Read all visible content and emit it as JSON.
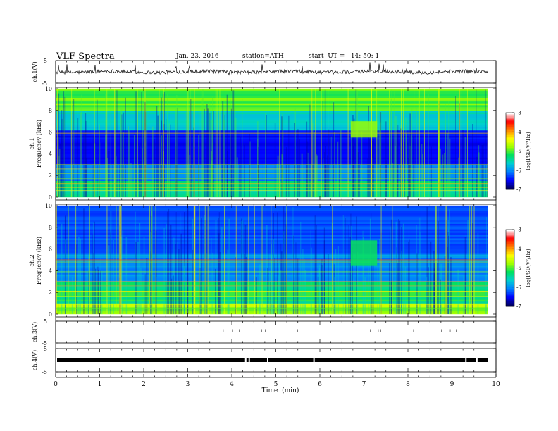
{
  "header": {
    "title": "VLF  Spectra",
    "date": "Jan. 23, 2016",
    "station": "station=ATH",
    "start_time": "start  UT =   14: 50: 1"
  },
  "chart_data": [
    {
      "type": "line",
      "panel": "ch1-waveform",
      "ylabel": "ch.1(V)",
      "ylim": [
        -5,
        5
      ],
      "y_tick_labels": [
        "5",
        "-5"
      ],
      "baseline_value": 0,
      "x_range": [
        0,
        10
      ],
      "data_extent_min": 9.82
    },
    {
      "type": "heatmap",
      "panel": "ch1-spectrogram",
      "ylabel_lines": [
        "ch.1",
        "Frequency  (kHz)"
      ],
      "ylim": [
        0,
        10
      ],
      "y_ticks": [
        "0",
        "2",
        "4",
        "6",
        "8",
        "10"
      ],
      "x_range": [
        0,
        10
      ],
      "data_extent_min": 9.82,
      "events": [
        {
          "name": "burst",
          "t_start": 6.7,
          "t_end": 7.3,
          "f_low": 5.5,
          "f_high": 7
        }
      ],
      "colorbar": {
        "label": "log(PSD(V²/Hz)",
        "ticks": [
          "-3",
          "-4",
          "-5",
          "-6",
          "-7"
        ],
        "range": [
          -7,
          -3
        ]
      }
    },
    {
      "type": "heatmap",
      "panel": "ch2-spectrogram",
      "ylabel_lines": [
        "ch.2",
        "Frequency  (kHz)"
      ],
      "ylim": [
        0,
        10
      ],
      "y_ticks": [
        "0",
        "2",
        "4",
        "6",
        "8",
        "10"
      ],
      "x_range": [
        0,
        10
      ],
      "data_extent_min": 9.82,
      "events": [
        {
          "name": "burst",
          "t_start": 6.7,
          "t_end": 7.3,
          "f_low": 4.5,
          "f_high": 6.8
        }
      ],
      "colorbar": {
        "label": "log(PSD(V²/Hz)",
        "ticks": [
          "-3",
          "-4",
          "-5",
          "-6",
          "-7"
        ],
        "range": [
          -7,
          -3
        ]
      }
    },
    {
      "type": "line",
      "panel": "ch3-waveform",
      "ylabel": "ch.3(V)",
      "ylim": [
        -5,
        5
      ],
      "y_tick_labels": [
        "5",
        "-5"
      ],
      "baseline_value": 0,
      "x_range": [
        0,
        10
      ],
      "data_extent_min": 9.82
    },
    {
      "type": "line",
      "panel": "ch4-waveform",
      "ylabel": "ch.4(V)",
      "ylim": [
        -5,
        5
      ],
      "y_tick_labels": [
        "5",
        "-5"
      ],
      "baseline_value": 0,
      "x_range": [
        0,
        10
      ],
      "data_extent_min": 9.82
    }
  ],
  "x_axis": {
    "label": "Time  (min)",
    "ticks": [
      "0",
      "1",
      "2",
      "3",
      "4",
      "5",
      "6",
      "7",
      "8",
      "9",
      "10"
    ]
  },
  "colors": {
    "colormap": [
      "#00005a",
      "#0000ff",
      "#0080ff",
      "#00d0d0",
      "#00e060",
      "#a0ff00",
      "#ffff00",
      "#ff8000",
      "#ff0000",
      "#ffffff"
    ],
    "background": "#ffffff",
    "axes": "#000000"
  }
}
